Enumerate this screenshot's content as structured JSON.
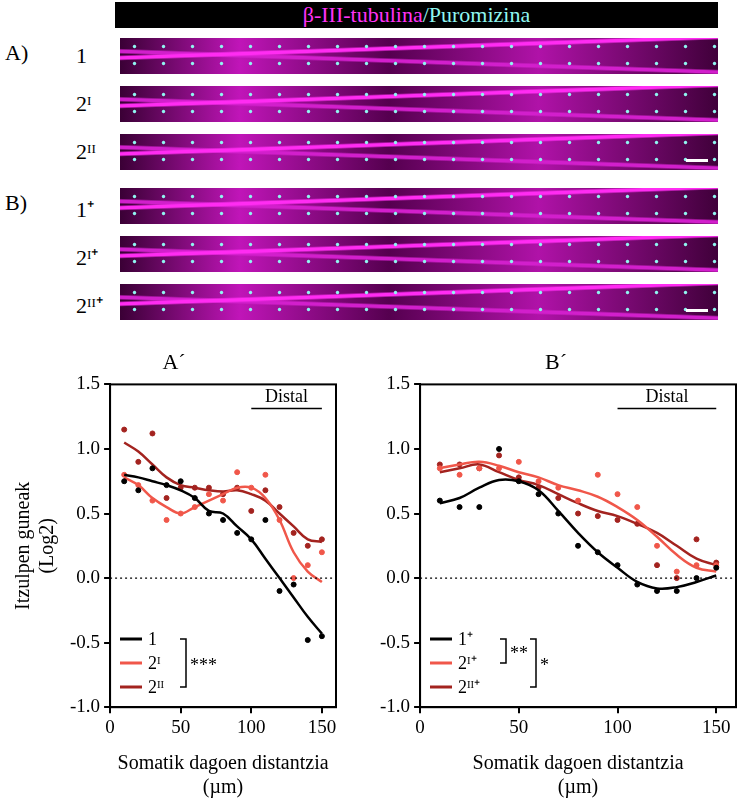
{
  "header": {
    "parts": [
      {
        "text": "β-III-tubulina",
        "color": "#ff33f5"
      },
      {
        "text": "/Puromizina",
        "color": "#8ff6f0"
      }
    ]
  },
  "panels": [
    {
      "label": "A)",
      "rows": [
        "1",
        "2ᴵ",
        "2ᴵᴵ"
      ]
    },
    {
      "label": "B)",
      "rows": [
        "1⁺",
        "2ᴵ⁺",
        "2ᴵᴵ⁺"
      ]
    }
  ],
  "chart_data": [
    {
      "type": "line",
      "title": "A´",
      "x_label": [
        "Somatik dagoen distantzia",
        "(µm)"
      ],
      "y_label": [
        "Itzulpen guneak",
        "(Log2)"
      ],
      "x": [
        10,
        20,
        30,
        40,
        50,
        60,
        70,
        80,
        90,
        100,
        110,
        120,
        130,
        140,
        150
      ],
      "series": [
        {
          "name": "1",
          "color": "#000000",
          "values": [
            0.8,
            0.78,
            0.75,
            0.72,
            0.68,
            0.62,
            0.52,
            0.5,
            0.4,
            0.3,
            0.15,
            0.0,
            -0.15,
            -0.3,
            -0.43
          ],
          "points": [
            0.75,
            0.68,
            0.85,
            0.72,
            0.75,
            0.62,
            0.5,
            0.45,
            0.35,
            0.3,
            0.45,
            -0.1,
            -0.05,
            -0.48,
            -0.45
          ]
        },
        {
          "name": "2ᴵ",
          "color": "#f0574a",
          "values": [
            0.78,
            0.72,
            0.62,
            0.55,
            0.5,
            0.55,
            0.6,
            0.65,
            0.7,
            0.7,
            0.62,
            0.45,
            0.2,
            0.05,
            -0.03
          ],
          "points": [
            0.8,
            0.72,
            0.6,
            0.45,
            0.5,
            0.55,
            0.65,
            0.6,
            0.82,
            0.7,
            0.8,
            0.45,
            0.0,
            0.1,
            0.2
          ]
        },
        {
          "name": "2ᴵᴵ",
          "color": "#a3231f",
          "values": [
            1.05,
            0.98,
            0.88,
            0.78,
            0.72,
            0.7,
            0.68,
            0.67,
            0.68,
            0.65,
            0.6,
            0.5,
            0.4,
            0.3,
            0.28
          ],
          "points": [
            1.15,
            0.9,
            1.12,
            0.62,
            0.7,
            0.7,
            0.7,
            0.65,
            0.7,
            0.52,
            0.68,
            0.55,
            0.35,
            0.25,
            0.3
          ]
        }
      ],
      "significance": [
        {
          "from": "1",
          "to": "2ᴵᴵ",
          "label": "***"
        }
      ],
      "distal": {
        "text": "Distal",
        "x": [
          100,
          150
        ]
      },
      "reference_y": 0,
      "xlim": [
        0,
        160
      ],
      "xticks": [
        0,
        50,
        100,
        150
      ],
      "ylim": [
        -1,
        1.5
      ],
      "yticks": [
        {
          "value": -1,
          "label": "-1.0"
        },
        {
          "value": -0.5,
          "label": "-0.5"
        },
        {
          "value": 0,
          "label": "0.0"
        },
        {
          "value": 0.5,
          "label": "0.5"
        },
        {
          "value": 1,
          "label": "1.0"
        },
        {
          "value": 1.5,
          "label": "1.5"
        }
      ],
      "grid": false,
      "legend": "lower left",
      "marker": "circle"
    },
    {
      "type": "line",
      "title": "B´",
      "x_label": [
        "Somatik dagoen distantzia",
        "(µm)"
      ],
      "x": [
        10,
        20,
        30,
        40,
        50,
        60,
        70,
        80,
        90,
        100,
        110,
        120,
        130,
        140,
        150
      ],
      "series": [
        {
          "name": "1⁺",
          "color": "#000000",
          "values": [
            0.58,
            0.62,
            0.7,
            0.76,
            0.75,
            0.68,
            0.52,
            0.35,
            0.2,
            0.08,
            -0.03,
            -0.08,
            -0.07,
            -0.03,
            0.02
          ],
          "points": [
            0.6,
            0.55,
            0.55,
            1.0,
            0.75,
            0.65,
            0.5,
            0.25,
            0.2,
            0.1,
            -0.05,
            -0.1,
            -0.1,
            0.0,
            0.08
          ]
        },
        {
          "name": "2ᴵ⁺",
          "color": "#f0574a",
          "values": [
            0.85,
            0.88,
            0.9,
            0.87,
            0.82,
            0.78,
            0.72,
            0.68,
            0.63,
            0.55,
            0.45,
            0.32,
            0.18,
            0.08,
            0.05
          ],
          "points": [
            0.85,
            0.8,
            0.85,
            0.85,
            0.9,
            0.75,
            0.7,
            0.6,
            0.8,
            0.65,
            0.55,
            0.25,
            0.05,
            0.1,
            0.1
          ]
        },
        {
          "name": "2ᴵᴵ⁺",
          "color": "#a3231f",
          "values": [
            0.82,
            0.85,
            0.88,
            0.82,
            0.76,
            0.72,
            0.65,
            0.58,
            0.52,
            0.48,
            0.42,
            0.35,
            0.25,
            0.15,
            0.1
          ],
          "points": [
            0.88,
            0.88,
            0.85,
            0.95,
            0.78,
            0.7,
            0.62,
            0.5,
            0.48,
            0.45,
            0.42,
            0.1,
            0.0,
            0.3,
            0.12
          ]
        }
      ],
      "significance": [
        {
          "from": "1⁺",
          "to": "2ᴵ⁺",
          "label": "**"
        },
        {
          "from": "1⁺",
          "to": "2ᴵᴵ⁺",
          "label": "*"
        }
      ],
      "distal": {
        "text": "Distal",
        "x": [
          100,
          150
        ]
      },
      "reference_y": 0,
      "xlim": [
        0,
        160
      ],
      "xticks": [
        0,
        50,
        100,
        150
      ],
      "ylim": [
        -1,
        1.5
      ],
      "yticks": [
        {
          "value": -1,
          "label": "-1.0"
        },
        {
          "value": -0.5,
          "label": "-0.5"
        },
        {
          "value": 0,
          "label": "0.0"
        },
        {
          "value": 0.5,
          "label": "0.5"
        },
        {
          "value": 1,
          "label": "1.0"
        },
        {
          "value": 1.5,
          "label": "1.5"
        }
      ],
      "grid": false,
      "legend": "lower left",
      "marker": "circle"
    }
  ]
}
